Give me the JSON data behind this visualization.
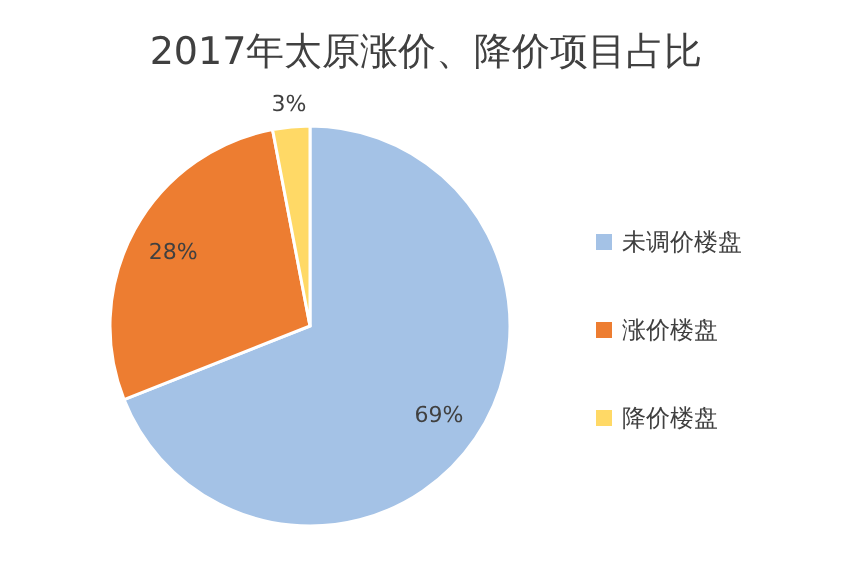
{
  "chart_data": {
    "type": "pie",
    "title": "2017年太原涨价、降价项目占比",
    "categories": [
      "未调价楼盘",
      "涨价楼盘",
      "降价楼盘"
    ],
    "values": [
      69,
      28,
      3
    ],
    "colors": [
      "#a4c2e6",
      "#ed7d31",
      "#ffd966"
    ],
    "value_labels": [
      "69%",
      "28%",
      "3%"
    ],
    "legend": "right"
  }
}
